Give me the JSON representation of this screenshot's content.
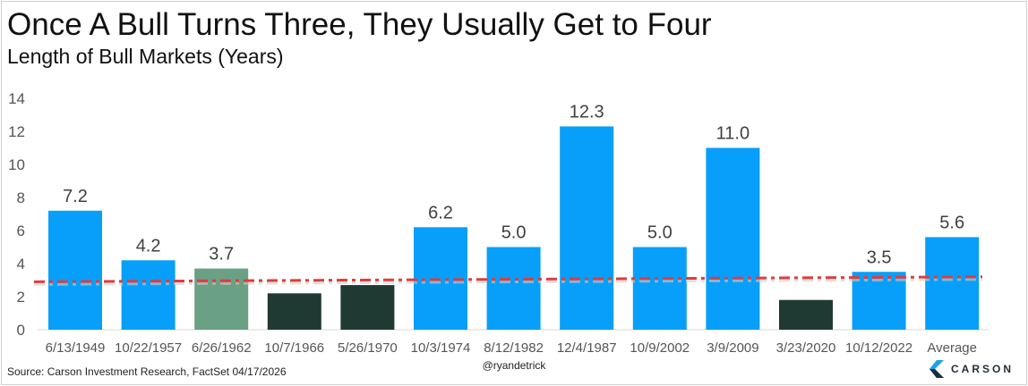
{
  "header": {
    "title": "Once A Bull Turns Three, They Usually Get to Four",
    "subtitle": "Length of Bull Markets (Years)"
  },
  "footer": {
    "source": "Source: Carson Investment Research, FactSet 04/17/2026",
    "handle": "@ryandetrick",
    "logo": "CARSON"
  },
  "colors": {
    "blue": "#089ffa",
    "green": "#6aa084",
    "dark": "#1f3a32",
    "reference": "#e03c3c"
  },
  "chart_data": {
    "type": "bar",
    "title": "Once A Bull Turns Three, They Usually Get to Four",
    "subtitle": "Length of Bull Markets (Years)",
    "xlabel": "",
    "ylabel": "",
    "ylim": [
      0,
      14
    ],
    "yticks": [
      0,
      2,
      4,
      6,
      8,
      10,
      12,
      14
    ],
    "categories": [
      "6/13/1949",
      "10/22/1957",
      "6/26/1962",
      "10/7/1966",
      "5/26/1970",
      "10/3/1974",
      "8/12/1982",
      "12/4/1987",
      "10/9/2002",
      "3/9/2009",
      "3/23/2020",
      "10/12/2022",
      "Average"
    ],
    "values": [
      7.2,
      4.2,
      3.7,
      2.2,
      2.7,
      6.2,
      5.0,
      12.3,
      5.0,
      11.0,
      1.8,
      3.5,
      5.6
    ],
    "labels": [
      "7.2",
      "4.2",
      "3.7",
      "",
      "",
      "6.2",
      "5.0",
      "12.3",
      "5.0",
      "11.0",
      "",
      "3.5",
      "5.6"
    ],
    "bar_colors": [
      "blue",
      "blue",
      "green",
      "dark",
      "dark",
      "blue",
      "blue",
      "blue",
      "blue",
      "blue",
      "dark",
      "blue",
      "blue"
    ],
    "reference_line": {
      "style": "dash-dot",
      "start": 2.9,
      "end": 3.2
    },
    "grid": false
  }
}
